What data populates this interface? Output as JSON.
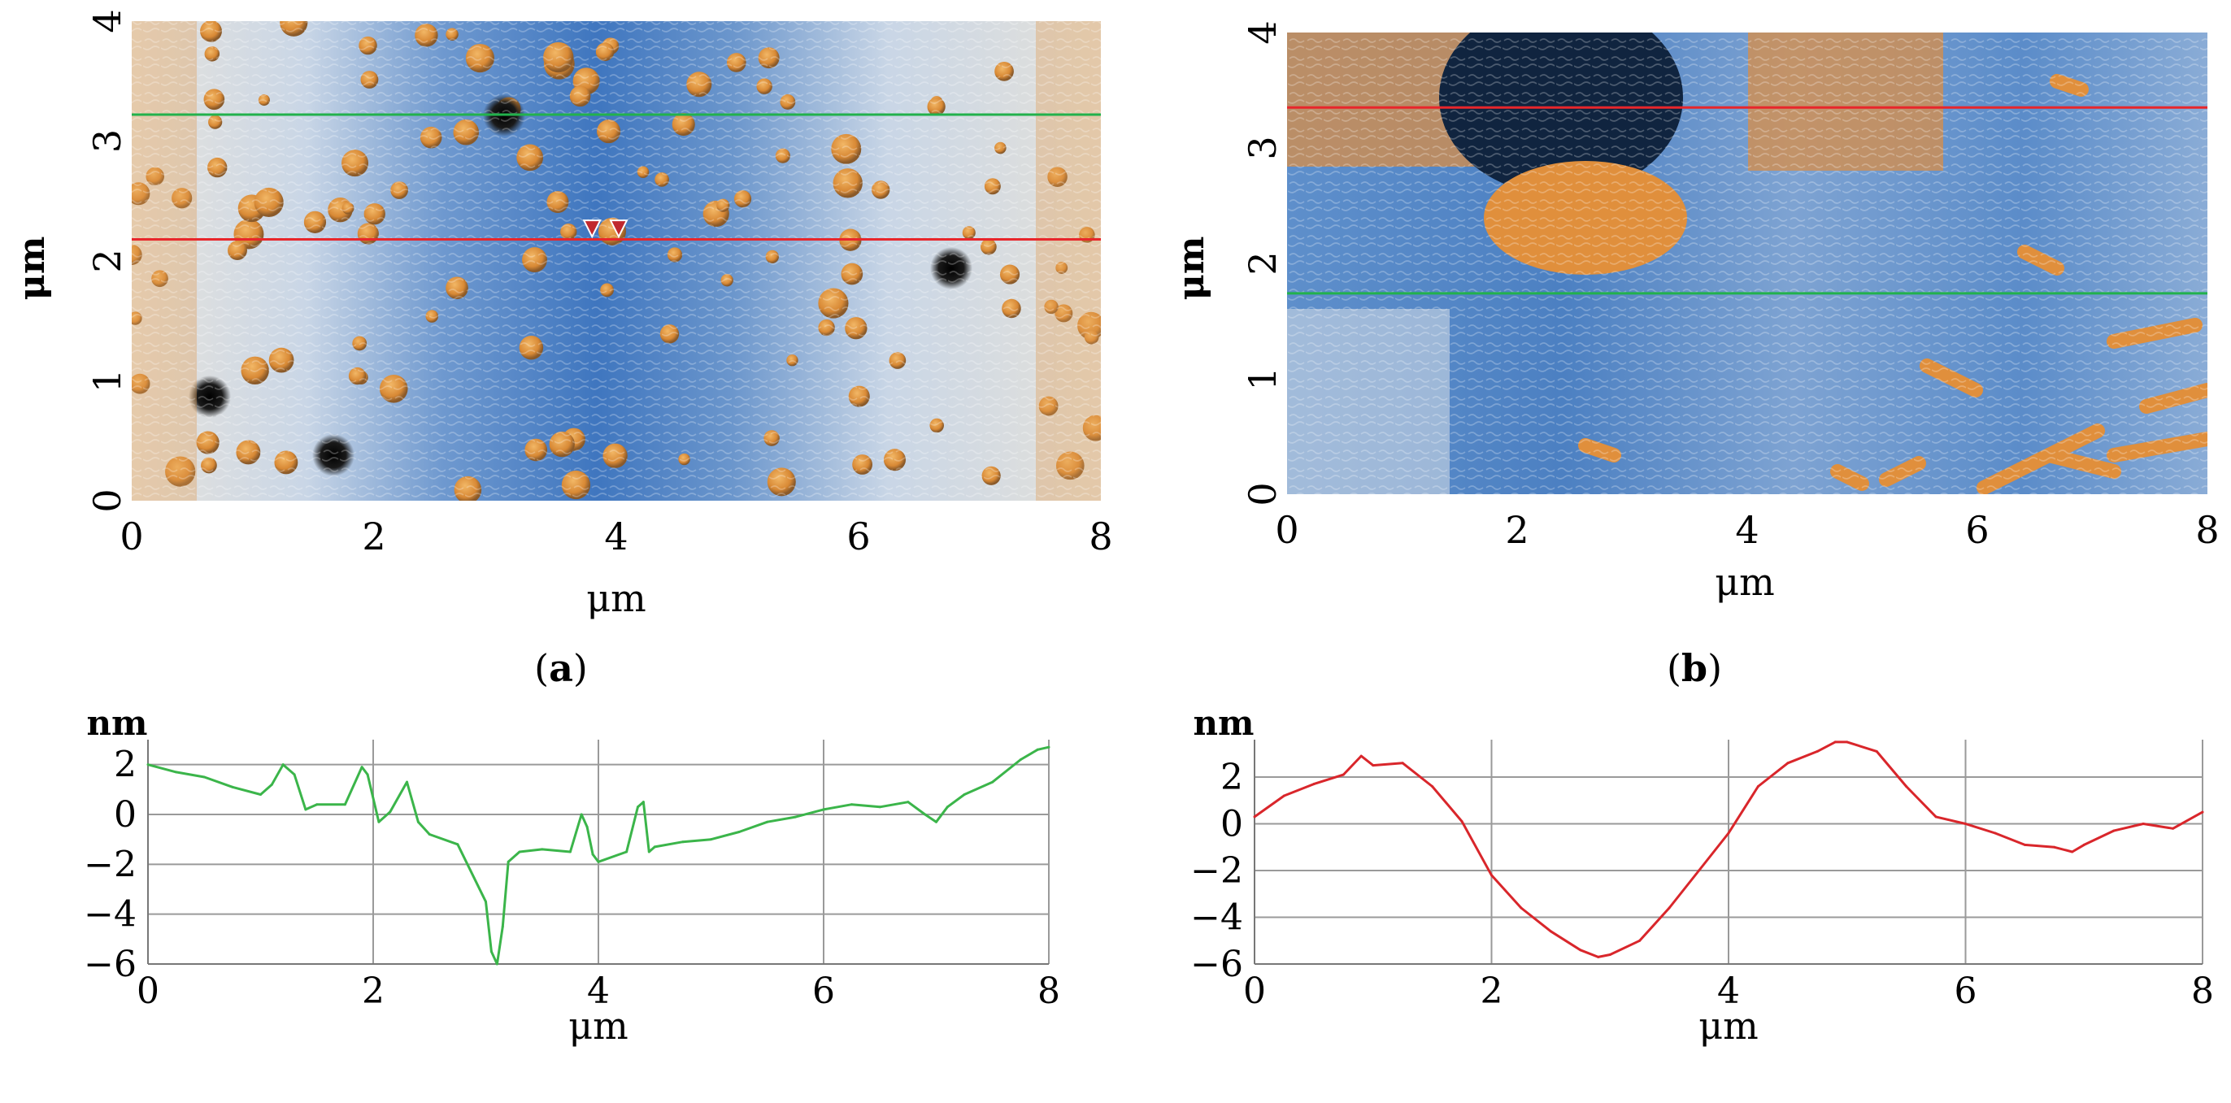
{
  "panels": [
    {
      "id": "a",
      "caption_open": "(",
      "caption_letter": "a",
      "caption_close": ")",
      "xlabel": "μm",
      "ylabel": "μm",
      "xticks": [
        "0",
        "2",
        "4",
        "6",
        "8"
      ],
      "yticks": [
        "0",
        "1",
        "2",
        "3",
        "4"
      ],
      "x_range": [
        0,
        8
      ],
      "y_range": [
        0,
        4
      ],
      "scan_lines": [
        {
          "name": "green",
          "y": 3.22,
          "color": "#22b14c"
        },
        {
          "name": "red",
          "y": 2.18,
          "color": "#e8262b"
        }
      ],
      "markers": [
        {
          "x": 3.8,
          "y": 2.27
        },
        {
          "x": 4.02,
          "y": 2.27
        }
      ]
    },
    {
      "id": "b",
      "caption_open": "(",
      "caption_letter": "b",
      "caption_close": ")",
      "xlabel": "μm",
      "ylabel": "μm",
      "xticks": [
        "0",
        "2",
        "4",
        "6",
        "8"
      ],
      "yticks": [
        "0",
        "1",
        "2",
        "3",
        "4"
      ],
      "x_range": [
        0,
        8
      ],
      "y_range": [
        0,
        4
      ],
      "scan_lines": [
        {
          "name": "red",
          "y": 3.35,
          "color": "#e8262b"
        },
        {
          "name": "green",
          "y": 1.74,
          "color": "#22b14c"
        }
      ]
    }
  ],
  "chart_data": [
    {
      "type": "line",
      "title": "",
      "xlabel": "μm",
      "ylabel": "nm",
      "xlim": [
        0,
        8
      ],
      "ylim": [
        -6,
        3
      ],
      "xticks": [
        "0",
        "2",
        "4",
        "6",
        "8"
      ],
      "yticks": [
        "-6",
        "-4",
        "-2",
        "0",
        "2"
      ],
      "grid": true,
      "series": [
        {
          "name": "green profile",
          "color": "#3bb54a",
          "x": [
            0,
            0.25,
            0.5,
            0.75,
            1.0,
            1.1,
            1.2,
            1.3,
            1.4,
            1.5,
            1.75,
            1.9,
            1.95,
            2.05,
            2.15,
            2.3,
            2.4,
            2.5,
            2.75,
            3.0,
            3.05,
            3.1,
            3.15,
            3.2,
            3.3,
            3.5,
            3.75,
            3.85,
            3.9,
            3.95,
            4.0,
            4.25,
            4.35,
            4.4,
            4.45,
            4.5,
            4.75,
            5.0,
            5.25,
            5.5,
            5.75,
            6.0,
            6.25,
            6.5,
            6.75,
            6.9,
            7.0,
            7.1,
            7.25,
            7.5,
            7.75,
            7.9,
            8.0
          ],
          "values": [
            2.0,
            1.7,
            1.5,
            1.1,
            0.8,
            1.2,
            2.0,
            1.6,
            0.2,
            0.4,
            0.4,
            1.9,
            1.6,
            -0.3,
            0.1,
            1.3,
            -0.3,
            -0.8,
            -1.2,
            -3.5,
            -5.5,
            -6.0,
            -4.5,
            -1.9,
            -1.5,
            -1.4,
            -1.5,
            0.0,
            -0.5,
            -1.6,
            -1.9,
            -1.5,
            0.3,
            0.5,
            -1.5,
            -1.3,
            -1.1,
            -1.0,
            -0.7,
            -0.3,
            -0.1,
            0.2,
            0.4,
            0.3,
            0.5,
            0.0,
            -0.3,
            0.3,
            0.8,
            1.3,
            2.2,
            2.6,
            2.7
          ]
        }
      ]
    },
    {
      "type": "line",
      "title": "",
      "xlabel": "μm",
      "ylabel": "nm",
      "xlim": [
        0,
        8
      ],
      "ylim": [
        -6,
        3.6
      ],
      "xticks": [
        "0",
        "2",
        "4",
        "6",
        "8"
      ],
      "yticks": [
        "-6",
        "-4",
        "-2",
        "0",
        "2"
      ],
      "grid": true,
      "series": [
        {
          "name": "red profile",
          "color": "#d9262b",
          "x": [
            0,
            0.25,
            0.5,
            0.75,
            0.9,
            1.0,
            1.25,
            1.5,
            1.75,
            2.0,
            2.25,
            2.5,
            2.75,
            2.9,
            3.0,
            3.25,
            3.5,
            3.75,
            4.0,
            4.25,
            4.5,
            4.75,
            4.9,
            5.0,
            5.25,
            5.5,
            5.75,
            6.0,
            6.25,
            6.5,
            6.75,
            6.9,
            7.0,
            7.25,
            7.5,
            7.75,
            8.0
          ],
          "values": [
            0.3,
            1.2,
            1.7,
            2.1,
            2.9,
            2.5,
            2.6,
            1.6,
            0.1,
            -2.2,
            -3.6,
            -4.6,
            -5.4,
            -5.7,
            -5.6,
            -5.0,
            -3.6,
            -2.0,
            -0.4,
            1.6,
            2.6,
            3.1,
            3.5,
            3.5,
            3.1,
            1.6,
            0.3,
            0.0,
            -0.4,
            -0.9,
            -1.0,
            -1.2,
            -0.9,
            -0.3,
            0.0,
            -0.2,
            0.5
          ]
        }
      ]
    }
  ],
  "colors": {
    "orange": "#e08f3c",
    "blue": "#3f78c0",
    "grid": "#9a9a9a"
  }
}
